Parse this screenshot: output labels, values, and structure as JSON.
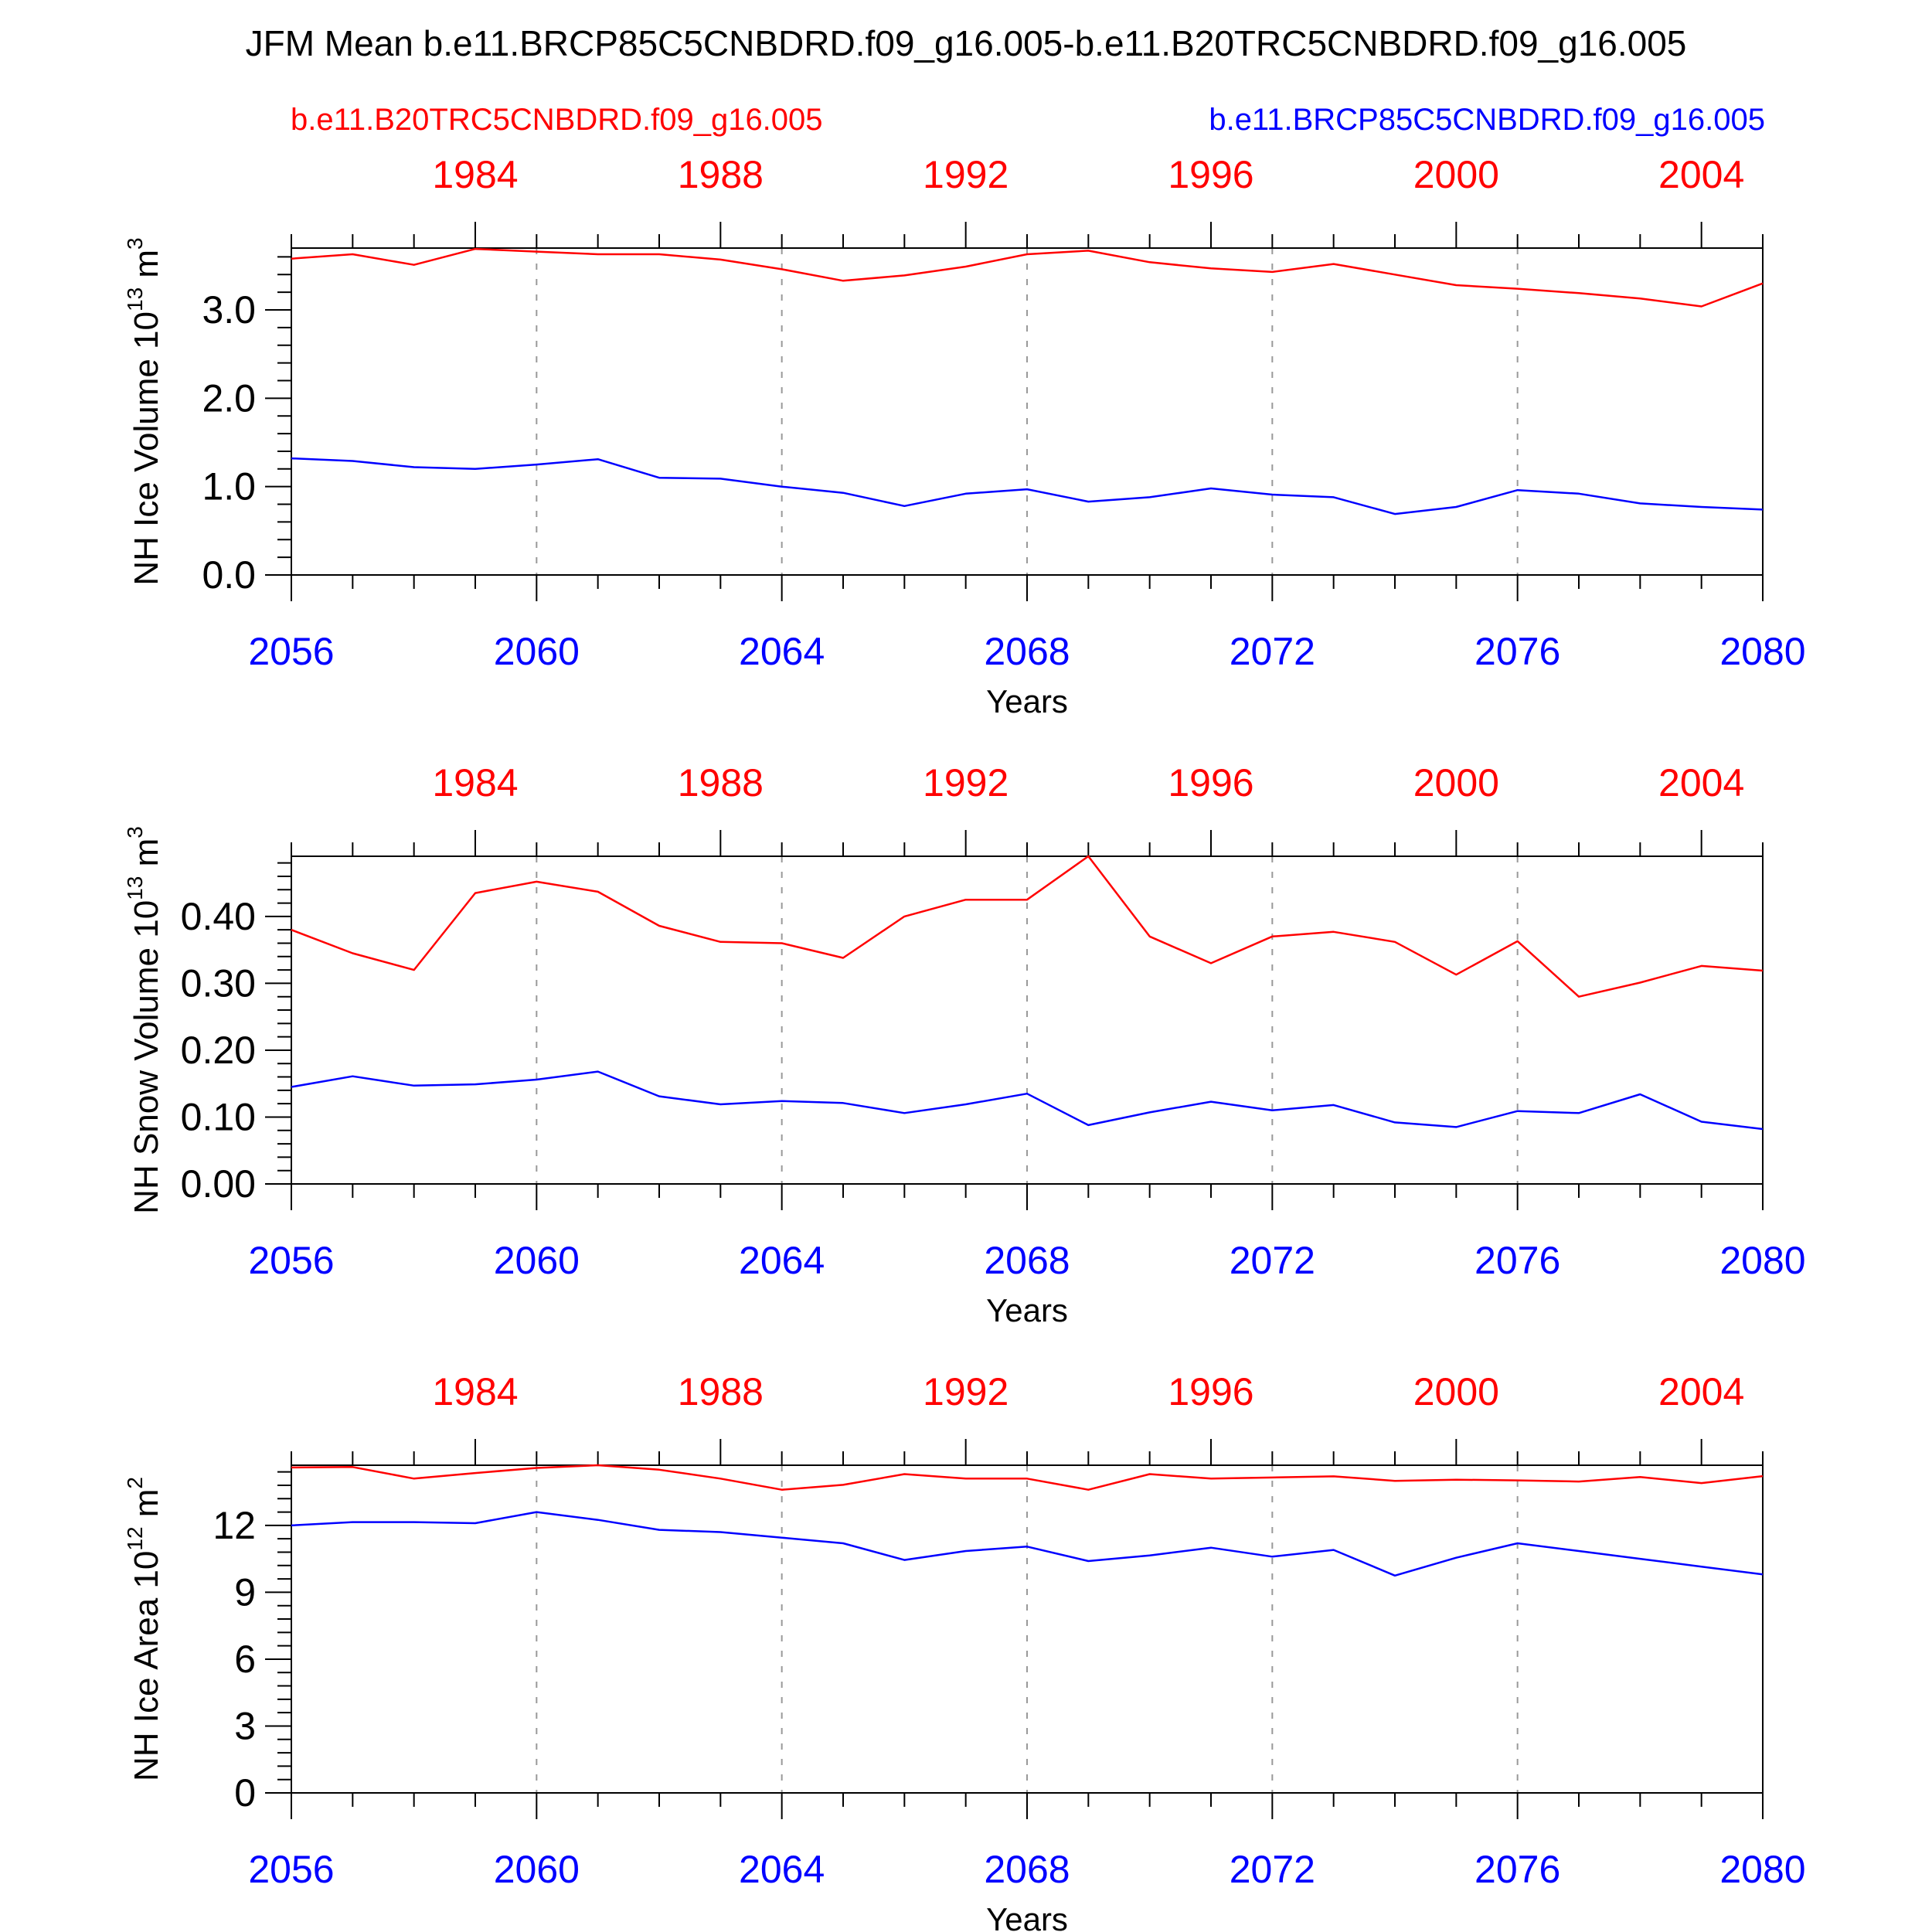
{
  "title": "JFM Mean b.e11.BRCP85C5CNBDRD.f09_g16.005-b.e11.B20TRC5CNBDRD.f09_g16.005",
  "legend": {
    "red_label": "b.e11.B20TRC5CNBDRD.f09_g16.005",
    "blue_label": "b.e11.BRCP85C5CNBDRD.f09_g16.005"
  },
  "colors": {
    "red": "#ff0000",
    "blue": "#0000ff",
    "axis": "#000000",
    "grid": "#999999"
  },
  "chart_data": [
    {
      "type": "line",
      "ylabel": "NH Ice Volume 10",
      "ylabel_exp": "13",
      "ylabel_unit": " m",
      "ylabel_unit_exp": "3",
      "xlabel": "Years",
      "ylim": [
        0,
        3.7
      ],
      "yticks": [
        "0.0",
        "1.0",
        "2.0",
        "3.0"
      ],
      "ytick_values": [
        0,
        1,
        2,
        3
      ],
      "yminor": 0.2,
      "x_bottom": [
        2056,
        2057,
        2058,
        2059,
        2060,
        2061,
        2062,
        2063,
        2064,
        2065,
        2066,
        2067,
        2068,
        2069,
        2070,
        2071,
        2072,
        2073,
        2074,
        2075,
        2076,
        2077,
        2078,
        2079,
        2080
      ],
      "x_top": [
        1981,
        1982,
        1983,
        1984,
        1985,
        1986,
        1987,
        1988,
        1989,
        1990,
        1991,
        1992,
        1993,
        1994,
        1995,
        1996,
        1997,
        1998,
        1999,
        2000,
        2001,
        2002,
        2003,
        2004,
        2005
      ],
      "xticks_bottom": [
        "2056",
        "2060",
        "2064",
        "2068",
        "2072",
        "2076",
        "2080"
      ],
      "xticks_top": [
        "1984",
        "1988",
        "1992",
        "1996",
        "2000",
        "2004"
      ],
      "series": [
        {
          "name": "b.e11.B20TRC5CNBDRD.f09_g16.005",
          "color": "#ff0000",
          "values": [
            3.58,
            3.63,
            3.51,
            3.69,
            3.66,
            3.63,
            3.63,
            3.57,
            3.46,
            3.33,
            3.39,
            3.49,
            3.63,
            3.67,
            3.54,
            3.47,
            3.43,
            3.52,
            3.4,
            3.28,
            3.24,
            3.19,
            3.13,
            3.04,
            3.3
          ]
        },
        {
          "name": "b.e11.BRCP85C5CNBDRD.f09_g16.005",
          "color": "#0000ff",
          "values": [
            1.32,
            1.29,
            1.22,
            1.2,
            1.25,
            1.31,
            1.1,
            1.09,
            1.0,
            0.93,
            0.78,
            0.92,
            0.97,
            0.83,
            0.88,
            0.98,
            0.91,
            0.88,
            0.69,
            0.77,
            0.96,
            0.92,
            0.81,
            0.77,
            0.74
          ]
        }
      ]
    },
    {
      "type": "line",
      "ylabel": "NH Snow Volume 10",
      "ylabel_exp": "13",
      "ylabel_unit": " m",
      "ylabel_unit_exp": "3",
      "xlabel": "Years",
      "ylim": [
        0,
        0.49
      ],
      "yticks": [
        "0.00",
        "0.10",
        "0.20",
        "0.30",
        "0.40"
      ],
      "ytick_values": [
        0,
        0.1,
        0.2,
        0.3,
        0.4
      ],
      "yminor": 0.02,
      "x_bottom": [
        2056,
        2057,
        2058,
        2059,
        2060,
        2061,
        2062,
        2063,
        2064,
        2065,
        2066,
        2067,
        2068,
        2069,
        2070,
        2071,
        2072,
        2073,
        2074,
        2075,
        2076,
        2077,
        2078,
        2079,
        2080
      ],
      "x_top": [
        1981,
        1982,
        1983,
        1984,
        1985,
        1986,
        1987,
        1988,
        1989,
        1990,
        1991,
        1992,
        1993,
        1994,
        1995,
        1996,
        1997,
        1998,
        1999,
        2000,
        2001,
        2002,
        2003,
        2004,
        2005
      ],
      "xticks_bottom": [
        "2056",
        "2060",
        "2064",
        "2068",
        "2072",
        "2076",
        "2080"
      ],
      "xticks_top": [
        "1984",
        "1988",
        "1992",
        "1996",
        "2000",
        "2004"
      ],
      "series": [
        {
          "name": "b.e11.B20TRC5CNBDRD.f09_g16.005",
          "color": "#ff0000",
          "values": [
            0.38,
            0.345,
            0.32,
            0.435,
            0.452,
            0.437,
            0.386,
            0.362,
            0.36,
            0.338,
            0.4,
            0.425,
            0.425,
            0.49,
            0.37,
            0.33,
            0.37,
            0.377,
            0.362,
            0.313,
            0.363,
            0.28,
            0.301,
            0.326,
            0.319
          ]
        },
        {
          "name": "b.e11.BRCP85C5CNBDRD.f09_g16.005",
          "color": "#0000ff",
          "values": [
            0.145,
            0.161,
            0.147,
            0.149,
            0.156,
            0.168,
            0.131,
            0.119,
            0.124,
            0.121,
            0.106,
            0.119,
            0.135,
            0.088,
            0.107,
            0.123,
            0.11,
            0.118,
            0.092,
            0.085,
            0.109,
            0.106,
            0.134,
            0.093,
            0.082
          ]
        }
      ]
    },
    {
      "type": "line",
      "ylabel": "NH Ice Area 10",
      "ylabel_exp": "12",
      "ylabel_unit": " m",
      "ylabel_unit_exp": "2",
      "xlabel": "Years",
      "ylim": [
        0,
        14.7
      ],
      "yticks": [
        "0",
        "3",
        "6",
        "9",
        "12"
      ],
      "ytick_values": [
        0,
        3,
        6,
        9,
        12
      ],
      "yminor": 0.6,
      "x_bottom": [
        2056,
        2057,
        2058,
        2059,
        2060,
        2061,
        2062,
        2063,
        2064,
        2065,
        2066,
        2067,
        2068,
        2069,
        2070,
        2071,
        2072,
        2073,
        2074,
        2075,
        2076,
        2077,
        2078,
        2079,
        2080
      ],
      "x_top": [
        1981,
        1982,
        1983,
        1984,
        1985,
        1986,
        1987,
        1988,
        1989,
        1990,
        1991,
        1992,
        1993,
        1994,
        1995,
        1996,
        1997,
        1998,
        1999,
        2000,
        2001,
        2002,
        2003,
        2004,
        2005
      ],
      "xticks_bottom": [
        "2056",
        "2060",
        "2064",
        "2068",
        "2072",
        "2076",
        "2080"
      ],
      "xticks_top": [
        "1984",
        "1988",
        "1992",
        "1996",
        "2000",
        "2004"
      ],
      "series": [
        {
          "name": "b.e11.B20TRC5CNBDRD.f09_g16.005",
          "color": "#ff0000",
          "values": [
            14.6,
            14.62,
            14.1,
            14.35,
            14.58,
            14.7,
            14.5,
            14.1,
            13.6,
            13.82,
            14.3,
            14.1,
            14.1,
            13.6,
            14.3,
            14.1,
            14.15,
            14.2,
            14.0,
            14.05,
            14.02,
            13.97,
            14.17,
            13.9,
            14.21
          ]
        },
        {
          "name": "b.e11.BRCP85C5CNBDRD.f09_g16.005",
          "color": "#0000ff",
          "values": [
            12.0,
            12.15,
            12.15,
            12.1,
            12.6,
            12.25,
            11.8,
            11.7,
            11.45,
            11.2,
            10.45,
            10.85,
            11.05,
            10.4,
            10.65,
            11.0,
            10.6,
            10.9,
            9.75,
            10.55,
            11.2,
            10.85,
            10.5,
            10.15,
            9.8
          ]
        }
      ]
    }
  ]
}
